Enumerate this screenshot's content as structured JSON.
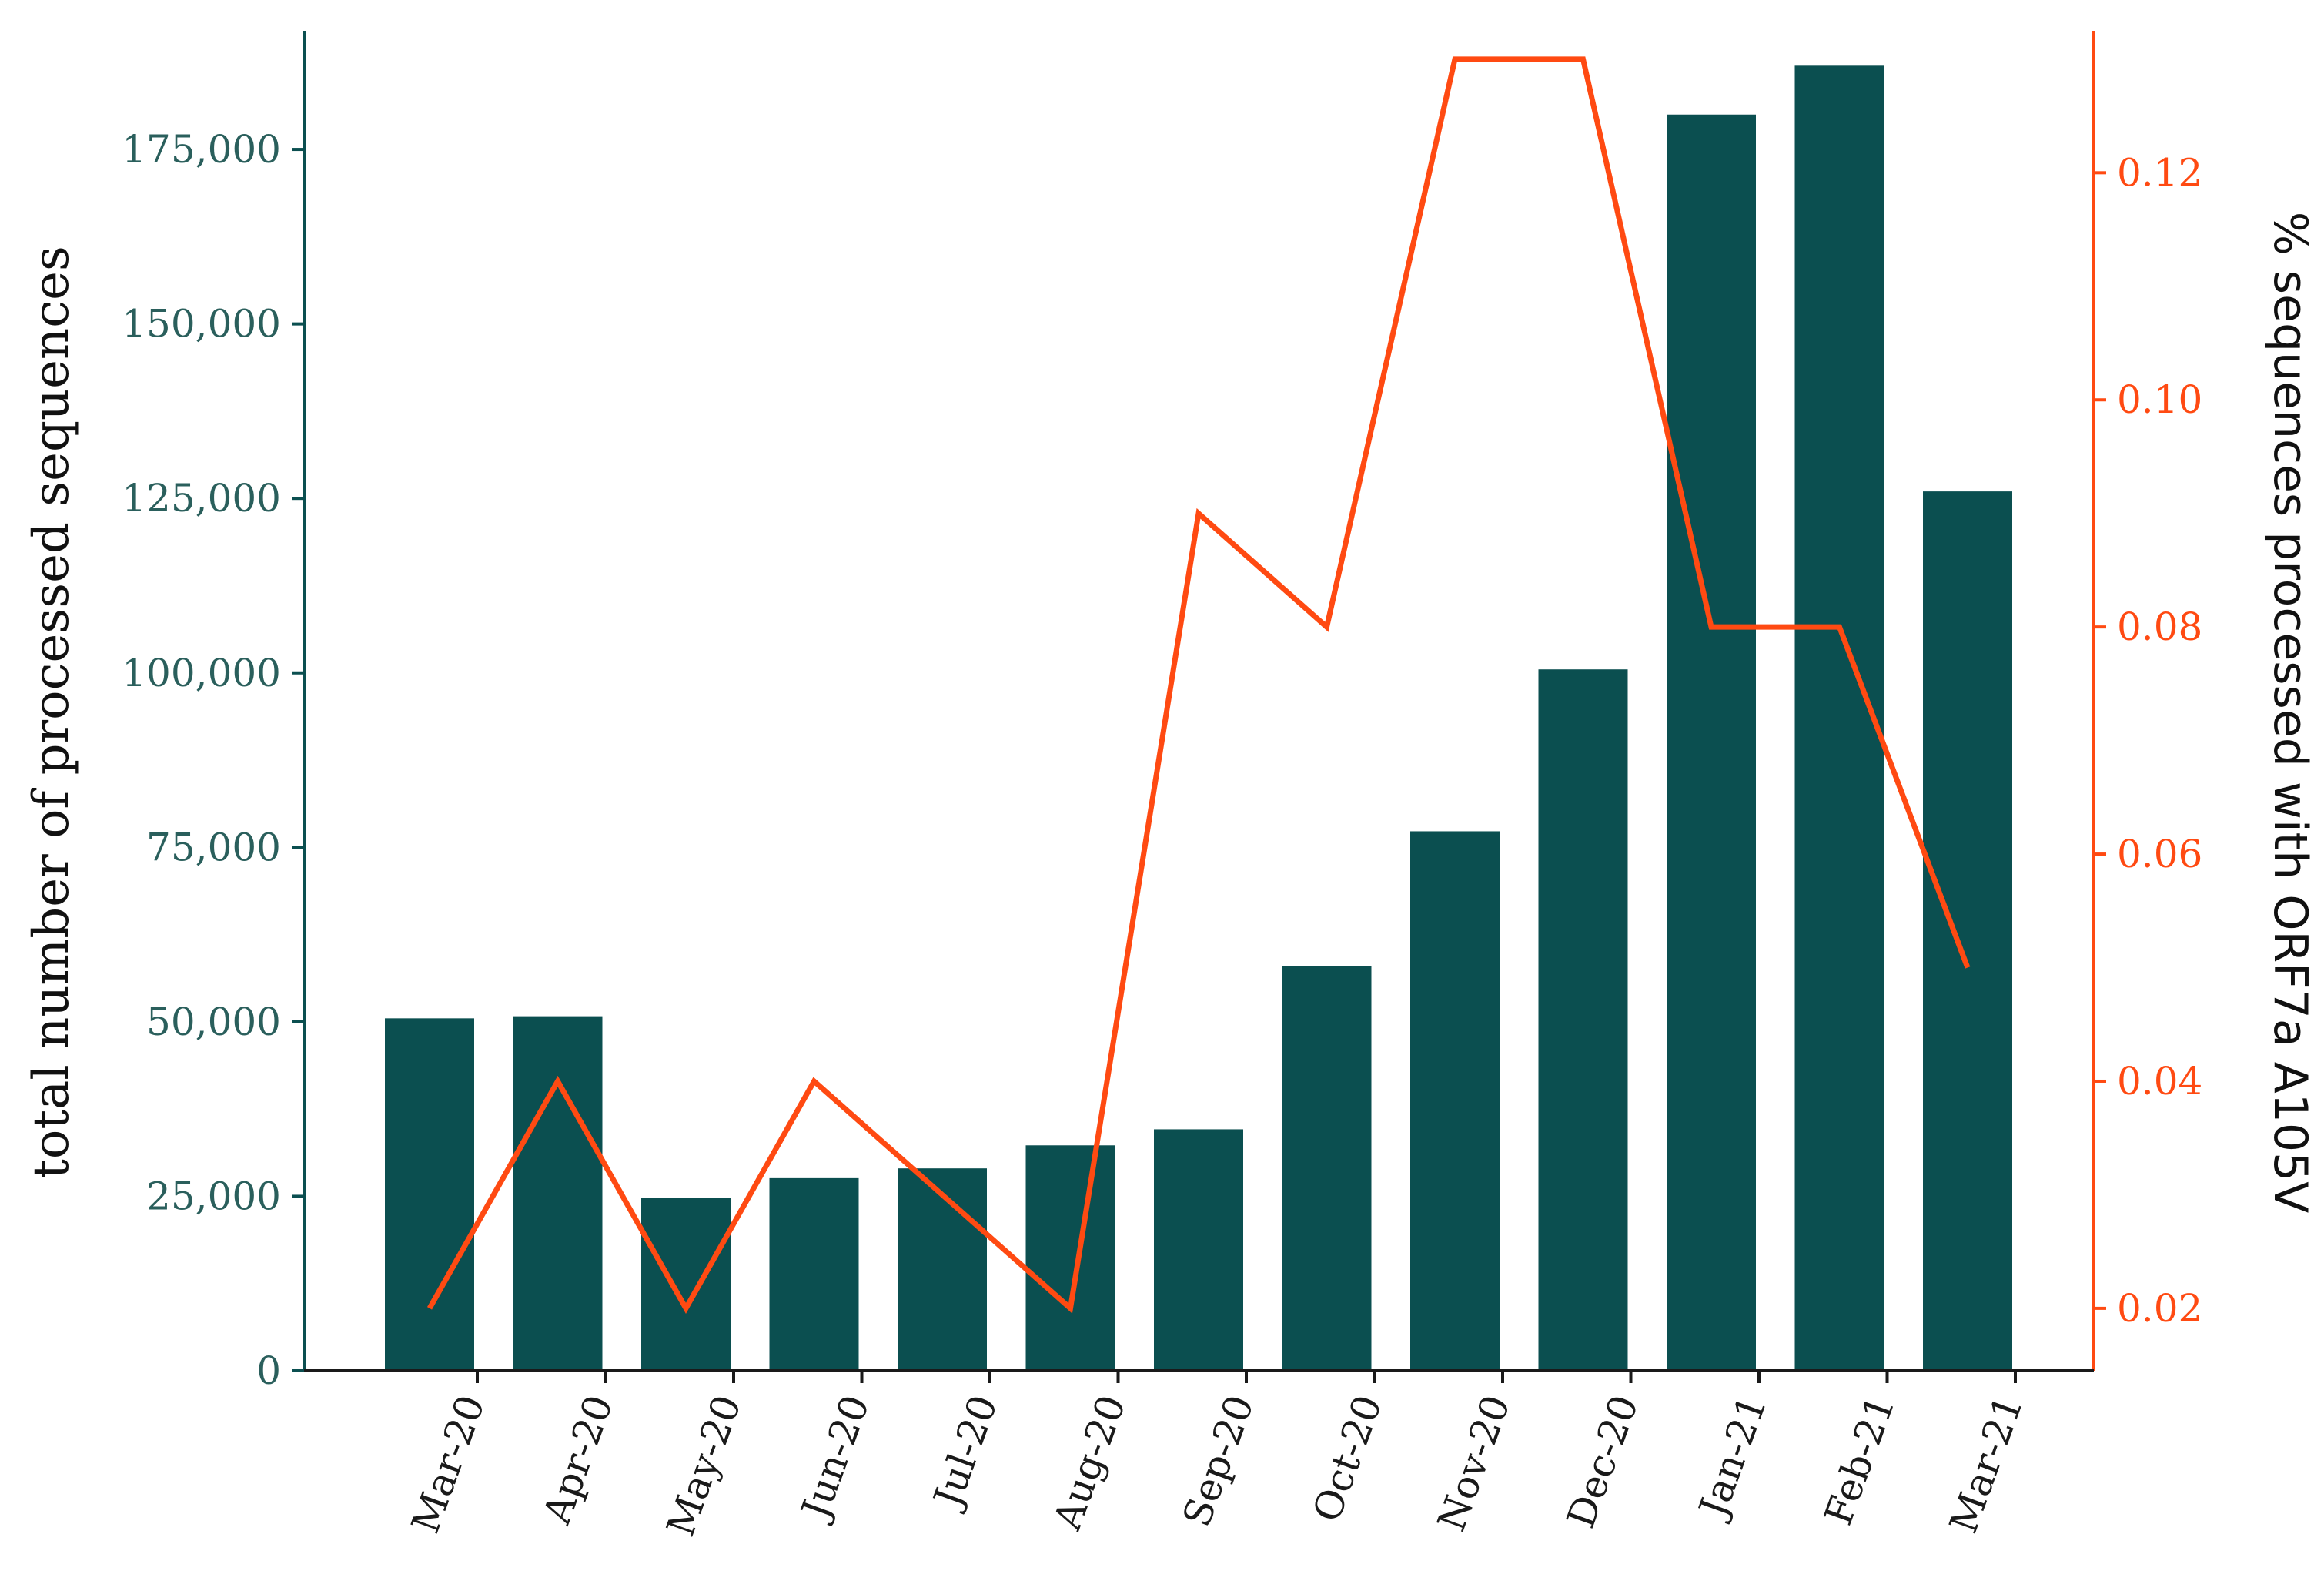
{
  "chart_data": {
    "type": "bar",
    "categories": [
      "Mar-20",
      "Apr-20",
      "May-20",
      "Jun-20",
      "Jul-20",
      "Aug-20",
      "Sep-20",
      "Oct-20",
      "Nov-20",
      "Dec-20",
      "Jan-21",
      "Feb-21",
      "Mar-21"
    ],
    "series": [
      {
        "type": "bar",
        "axis": "left",
        "color": "#0b4f50",
        "values": [
          50500,
          50800,
          24800,
          27600,
          29000,
          32300,
          34600,
          58000,
          77300,
          100500,
          180000,
          187000,
          126000
        ]
      },
      {
        "type": "line",
        "axis": "right",
        "color": "#ff4a12",
        "values": [
          0.02,
          0.04,
          0.02,
          0.04,
          0.03,
          0.02,
          0.09,
          0.08,
          0.13,
          0.13,
          0.08,
          0.08,
          0.05
        ]
      }
    ],
    "ylabel": "total number of processed sequences",
    "ylabel_right": "% sequences processed with ORF7a A105V",
    "ylim": [
      0,
      192000
    ],
    "ylim_right": [
      0.0145,
      0.1325
    ],
    "yticks": [
      {
        "value": 0,
        "label": "0"
      },
      {
        "value": 25000,
        "label": "25,000"
      },
      {
        "value": 50000,
        "label": "50,000"
      },
      {
        "value": 75000,
        "label": "75,000"
      },
      {
        "value": 100000,
        "label": "100,000"
      },
      {
        "value": 125000,
        "label": "125,000"
      },
      {
        "value": 150000,
        "label": "150,000"
      },
      {
        "value": 175000,
        "label": "175,000"
      }
    ],
    "yticks_right": [
      {
        "value": 0.02,
        "label": "0.02"
      },
      {
        "value": 0.04,
        "label": "0.04"
      },
      {
        "value": 0.06,
        "label": "0.06"
      },
      {
        "value": 0.08,
        "label": "0.08"
      },
      {
        "value": 0.1,
        "label": "0.10"
      },
      {
        "value": 0.12,
        "label": "0.12"
      }
    ],
    "left_axis_color": "#0b4f50",
    "right_axis_color": "#ff4a12",
    "grid": false,
    "legend": "none"
  }
}
